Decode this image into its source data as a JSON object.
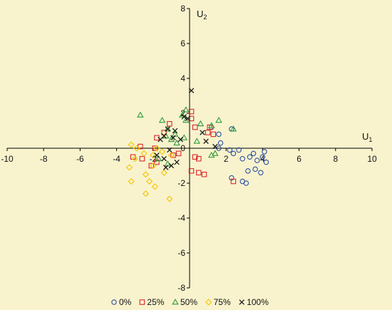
{
  "chart_data": {
    "type": "scatter",
    "title": "",
    "xlabel_main": "U",
    "xlabel_sub": "1",
    "ylabel_main": "U",
    "ylabel_sub": "2",
    "xlim": [
      -10,
      10
    ],
    "ylim": [
      -8,
      8
    ],
    "x_ticks": [
      -10,
      -8,
      -6,
      -4,
      -2,
      2,
      4,
      6,
      8,
      10
    ],
    "y_ticks": [
      -8,
      -6,
      -4,
      -2,
      2,
      4,
      6,
      8
    ],
    "origin_label": "0",
    "grid": false,
    "legend_position": "bottom",
    "series": [
      {
        "name": "0%",
        "marker": "circle",
        "color": "#2e4fa3",
        "points": [
          [
            1.2,
            1.2
          ],
          [
            1.6,
            0.8
          ],
          [
            2.3,
            1.1
          ],
          [
            1.6,
            0.0
          ],
          [
            2.2,
            -0.1
          ],
          [
            2.4,
            -0.3
          ],
          [
            2.7,
            -0.1
          ],
          [
            2.9,
            -0.6
          ],
          [
            3.3,
            -0.5
          ],
          [
            3.5,
            -0.3
          ],
          [
            3.7,
            -0.7
          ],
          [
            4.0,
            -0.5
          ],
          [
            4.1,
            -0.2
          ],
          [
            4.2,
            -0.8
          ],
          [
            3.2,
            -1.3
          ],
          [
            3.6,
            -1.2
          ],
          [
            3.9,
            -1.4
          ],
          [
            2.3,
            -1.7
          ],
          [
            2.9,
            -1.9
          ],
          [
            3.1,
            -2.0
          ],
          [
            1.7,
            0.3
          ]
        ]
      },
      {
        "name": "25%",
        "marker": "square",
        "color": "#d9292a",
        "points": [
          [
            -1.1,
            1.4
          ],
          [
            -1.4,
            0.9
          ],
          [
            -1.8,
            0.6
          ],
          [
            -1.9,
            0.0
          ],
          [
            -2.7,
            0.1
          ],
          [
            -3.1,
            -0.5
          ],
          [
            -2.6,
            -0.6
          ],
          [
            -2.1,
            -1.0
          ],
          [
            -1.8,
            -0.8
          ],
          [
            -0.9,
            -0.4
          ],
          [
            0.1,
            1.7
          ],
          [
            0.1,
            2.1
          ],
          [
            0.3,
            1.2
          ],
          [
            0.3,
            -0.5
          ],
          [
            0.5,
            -0.6
          ],
          [
            0.1,
            -1.3
          ],
          [
            0.5,
            -1.4
          ],
          [
            0.8,
            -1.5
          ],
          [
            1.0,
            0.9
          ],
          [
            1.1,
            1.2
          ],
          [
            1.3,
            0.8
          ],
          [
            2.4,
            -1.9
          ],
          [
            -0.6,
            -0.3
          ]
        ]
      },
      {
        "name": "50%",
        "marker": "triangle",
        "color": "#2f9a3a",
        "points": [
          [
            -2.7,
            1.9
          ],
          [
            -1.5,
            1.6
          ],
          [
            -0.4,
            1.9
          ],
          [
            -0.2,
            2.2
          ],
          [
            -1.2,
            1.1
          ],
          [
            -0.8,
            0.8
          ],
          [
            -1.3,
            0.7
          ],
          [
            -1.0,
            0.5
          ],
          [
            -0.3,
            0.6
          ],
          [
            0.4,
            0.4
          ],
          [
            0.6,
            1.4
          ],
          [
            1.2,
            1.3
          ],
          [
            1.6,
            1.6
          ],
          [
            2.4,
            1.1
          ],
          [
            -0.7,
            0.3
          ],
          [
            -1.7,
            -0.6
          ],
          [
            -1.2,
            -0.9
          ],
          [
            1.2,
            -0.4
          ],
          [
            1.4,
            -0.3
          ],
          [
            -0.2,
            1.6
          ]
        ]
      },
      {
        "name": "75%",
        "marker": "diamond",
        "color": "#f5c400",
        "points": [
          [
            -3.2,
            0.2
          ],
          [
            -2.9,
            0.0
          ],
          [
            -2.5,
            -0.3
          ],
          [
            -2.0,
            -0.4
          ],
          [
            -1.8,
            0.0
          ],
          [
            -1.5,
            -0.2
          ],
          [
            -1.0,
            -0.4
          ],
          [
            -3.0,
            -0.6
          ],
          [
            -3.3,
            -1.1
          ],
          [
            -2.4,
            -1.5
          ],
          [
            -2.2,
            -1.9
          ],
          [
            -1.9,
            -2.2
          ],
          [
            -2.4,
            -2.6
          ],
          [
            -1.1,
            -2.9
          ],
          [
            -3.2,
            -1.9
          ],
          [
            -1.4,
            -1.4
          ],
          [
            -2.0,
            -1.0
          ]
        ]
      },
      {
        "name": "100%",
        "marker": "x",
        "color": "#1a1a1a",
        "points": [
          [
            0.1,
            3.3
          ],
          [
            -0.3,
            1.8
          ],
          [
            -0.1,
            1.7
          ],
          [
            -1.2,
            1.1
          ],
          [
            -0.8,
            1.0
          ],
          [
            -1.4,
            0.7
          ],
          [
            -0.9,
            0.6
          ],
          [
            -0.5,
            0.5
          ],
          [
            -1.6,
            0.5
          ],
          [
            -1.8,
            -0.4
          ],
          [
            -1.4,
            -0.6
          ],
          [
            -1.3,
            -1.1
          ],
          [
            -1.0,
            -1.0
          ],
          [
            -0.7,
            -0.8
          ],
          [
            0.7,
            0.9
          ],
          [
            0.9,
            0.4
          ],
          [
            1.4,
            0.1
          ],
          [
            -1.1,
            -0.1
          ]
        ]
      }
    ]
  }
}
